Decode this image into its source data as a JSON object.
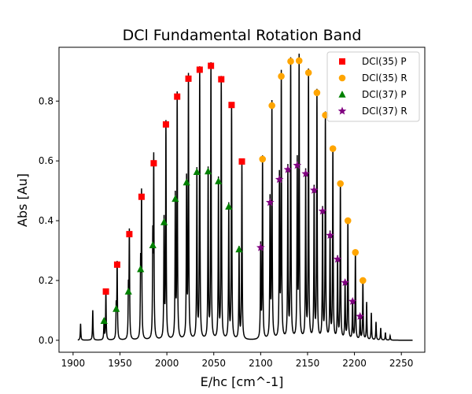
{
  "chart_data": {
    "type": "line",
    "title": "DCl Fundamental Rotation Band",
    "xlabel": "E/hc [cm^-1]",
    "ylabel": "Abs [Au]",
    "xlim": [
      1885,
      2275
    ],
    "ylim": [
      -0.04,
      0.98
    ],
    "xticks": [
      1900,
      1950,
      2000,
      2050,
      2100,
      2150,
      2200,
      2250
    ],
    "yticks": [
      0.0,
      0.2,
      0.4,
      0.6,
      0.8
    ],
    "legend_position": "top-right",
    "line_range": [
      1905,
      2262
    ],
    "series": [
      {
        "name": "DCl(35) P",
        "marker": "square",
        "color": "#ff0000",
        "x": [
          1935,
          1947,
          1960,
          1973,
          1986,
          1999,
          2011,
          2023,
          2035,
          2047,
          2058,
          2069,
          2080
        ],
        "y": [
          0.163,
          0.253,
          0.355,
          0.48,
          0.592,
          0.722,
          0.815,
          0.875,
          0.905,
          0.918,
          0.873,
          0.787,
          0.598
        ]
      },
      {
        "name": "DCl(35) R",
        "marker": "circle",
        "color": "#ffa500",
        "x": [
          2102,
          2112,
          2122,
          2132,
          2141,
          2151,
          2160,
          2169,
          2177,
          2185,
          2193,
          2201,
          2209
        ],
        "y": [
          0.606,
          0.785,
          0.883,
          0.933,
          0.935,
          0.895,
          0.828,
          0.753,
          0.641,
          0.524,
          0.4,
          0.294,
          0.2
        ]
      },
      {
        "name": "DCl(37) P",
        "marker": "triangle",
        "color": "#008000",
        "x": [
          1933,
          1946,
          1959,
          1972,
          1985,
          1997,
          2009,
          2021,
          2032,
          2044,
          2055,
          2066,
          2077
        ],
        "y": [
          0.065,
          0.105,
          0.163,
          0.238,
          0.318,
          0.395,
          0.473,
          0.528,
          0.563,
          0.565,
          0.532,
          0.447,
          0.304
        ]
      },
      {
        "name": "DCl(37) R",
        "marker": "star",
        "color": "#800080",
        "x": [
          2100,
          2110,
          2120,
          2129,
          2139,
          2148,
          2157,
          2166,
          2174,
          2182,
          2190,
          2198,
          2206
        ],
        "y": [
          0.31,
          0.461,
          0.538,
          0.571,
          0.585,
          0.557,
          0.502,
          0.432,
          0.351,
          0.271,
          0.193,
          0.13,
          0.08
        ]
      }
    ],
    "minor_peaks": {
      "x": [
        1908,
        1921,
        2213,
        2218,
        2223,
        2228,
        2233,
        2238
      ],
      "y": [
        0.055,
        0.1,
        0.125,
        0.09,
        0.06,
        0.04,
        0.025,
        0.015
      ]
    }
  }
}
